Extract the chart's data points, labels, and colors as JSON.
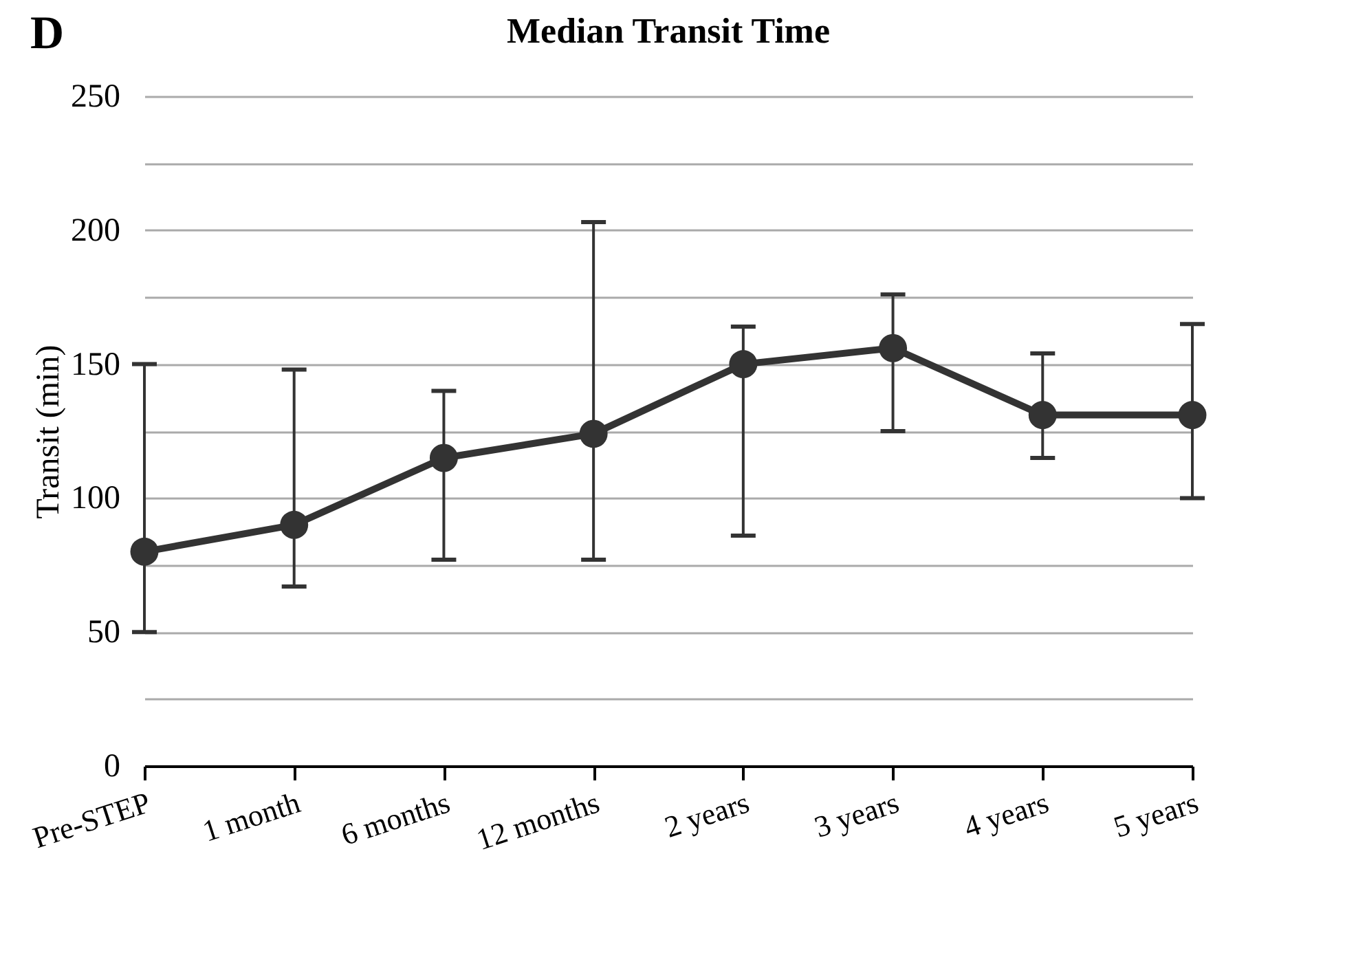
{
  "chart_data": {
    "type": "line",
    "title": "Median Transit Time",
    "ylabel": "Transit (min)",
    "annotations": [
      "D"
    ],
    "categories": [
      "Pre-STEP",
      "1 month",
      "6 months",
      "12 months",
      "2 years",
      "3 years",
      "4 years",
      "5 years"
    ],
    "series": [
      {
        "color": "#333333",
        "values": [
          80,
          90,
          115,
          124,
          150,
          156,
          131,
          131
        ],
        "errors": [
          [
            50,
            150
          ],
          [
            67,
            148
          ],
          [
            77,
            140
          ],
          [
            77,
            203
          ],
          [
            86,
            164
          ],
          [
            125,
            176
          ],
          [
            115,
            154
          ],
          [
            100,
            165
          ]
        ]
      }
    ],
    "ylim": [
      0,
      250
    ],
    "yticks": [
      0,
      {
        "value": 25,
        "label": null
      },
      50,
      {
        "value": 75,
        "label": null
      },
      100,
      {
        "value": 125,
        "label": null
      },
      150,
      {
        "value": 175,
        "label": null
      },
      200,
      {
        "value": 225,
        "label": null
      },
      250
    ],
    "grid": "y",
    "marker": "circle",
    "line_style": "solid"
  }
}
